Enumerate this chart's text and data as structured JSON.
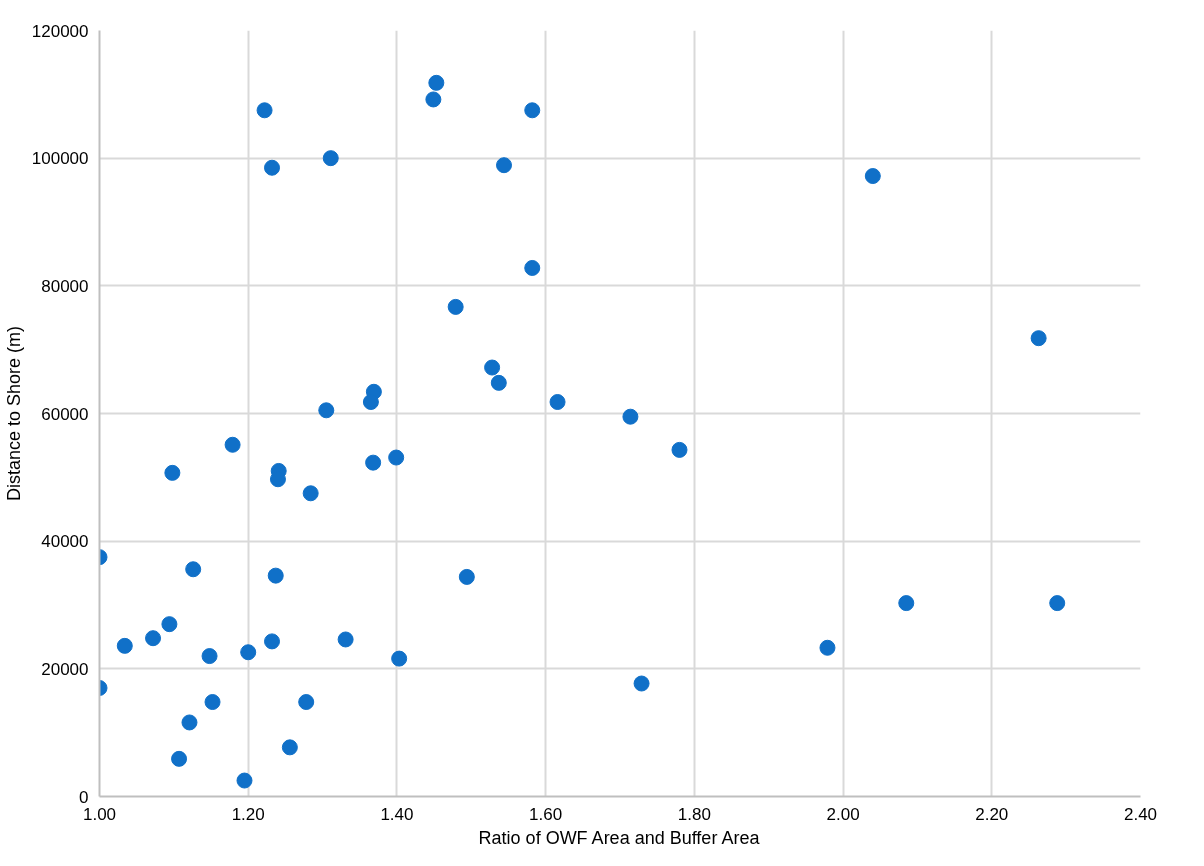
{
  "chart_data": {
    "type": "scatter",
    "xlabel": "Ratio of OWF Area and Buffer Area",
    "ylabel": "Distance to Shore (m)",
    "xlim": [
      1.0,
      2.4
    ],
    "ylim": [
      0,
      120000
    ],
    "xticks": [
      {
        "value": 1.0,
        "label": "1.00"
      },
      {
        "value": 1.2,
        "label": "1.20"
      },
      {
        "value": 1.4,
        "label": "1.40"
      },
      {
        "value": 1.6,
        "label": "1.60"
      },
      {
        "value": 1.8,
        "label": "1.80"
      },
      {
        "value": 2.0,
        "label": "2.00"
      },
      {
        "value": 2.2,
        "label": "2.20"
      },
      {
        "value": 2.4,
        "label": "2.40"
      }
    ],
    "yticks": [
      0,
      20000,
      40000,
      60000,
      80000,
      100000,
      120000
    ],
    "grid": true,
    "marker": "circle",
    "series": [
      {
        "color": "#1070c8",
        "x": [
          1.222,
          1.232,
          1.311,
          1.453,
          1.449,
          1.369,
          1.365,
          1.305,
          1.179,
          1.098,
          1.241,
          1.24,
          1.284,
          1.368,
          1.399,
          1.0,
          1.126,
          1.237,
          1.094,
          1.072,
          1.034,
          1.148,
          1.2,
          1.232,
          1.331,
          1.403,
          1.0,
          1.152,
          1.121,
          1.278,
          1.256,
          1.107,
          1.195,
          1.582,
          1.544,
          1.582,
          1.479,
          1.528,
          1.537,
          1.616,
          1.714,
          1.78,
          1.494,
          1.729,
          2.04,
          2.263,
          2.085,
          2.288,
          1.979
        ],
        "values": [
          107500,
          98500,
          100000,
          111800,
          109200,
          63400,
          61800,
          60500,
          55100,
          50700,
          51000,
          49700,
          47500,
          52300,
          53100,
          37500,
          35600,
          34600,
          27000,
          24800,
          23600,
          22000,
          22600,
          24300,
          24600,
          21600,
          17000,
          14800,
          11600,
          14800,
          7700,
          5900,
          2500,
          107500,
          98900,
          82800,
          76700,
          67200,
          64800,
          61800,
          59500,
          54300,
          34400,
          17700,
          97200,
          71800,
          30300,
          30300,
          23300
        ]
      }
    ]
  }
}
